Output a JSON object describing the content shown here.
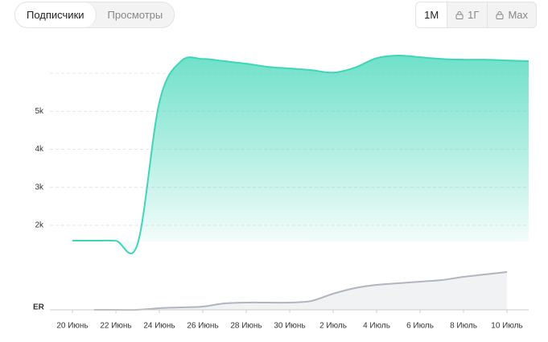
{
  "tabs": [
    "Подписчики",
    "Просмотры"
  ],
  "periods": [
    "1М",
    "1Г",
    "Max"
  ],
  "chart_data": {
    "type": "area",
    "color": "#3fd6b8",
    "categories": [
      "20 Июнь",
      null,
      "22 Июнь",
      null,
      "24 Июнь",
      null,
      "26 Июнь",
      null,
      "28 Июнь",
      null,
      "30 Июнь",
      null,
      "2 Июль",
      null,
      "4 Июль",
      null,
      "6 Июль",
      null,
      "8 Июль",
      null,
      "10 Июль",
      null
    ],
    "values": [
      1596,
      1596,
      1590,
      1510,
      5230,
      6320,
      6380,
      6320,
      6255,
      6170,
      6130,
      6085,
      6020,
      6150,
      6400,
      6470,
      6425,
      6380,
      6360,
      6360,
      6340,
      6320
    ],
    "ylim": [
      1575,
      6660
    ],
    "yticks": [
      {
        "value": 2000,
        "label": "2k"
      },
      {
        "value": 3000,
        "label": "3k"
      },
      {
        "value": 4000,
        "label": "4k"
      },
      {
        "value": 5000,
        "label": "5k"
      }
    ],
    "ygrid": [
      2000,
      3000,
      4000,
      5000,
      6000
    ],
    "er": {
      "label": "ER",
      "color": "#b0b5bf",
      "ylim": [
        0,
        50
      ],
      "values": [
        null,
        0,
        0,
        0,
        2,
        3,
        4,
        8,
        9,
        9,
        9,
        11,
        20,
        27,
        31,
        33,
        35,
        37,
        41,
        44,
        47,
        null
      ]
    }
  }
}
